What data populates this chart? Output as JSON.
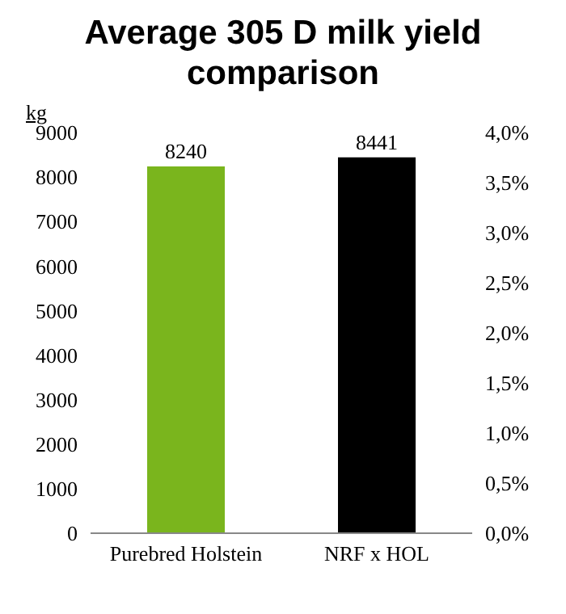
{
  "chart_data": {
    "type": "bar",
    "title": "Average 305 D milk yield comparison",
    "ylabel": "kg",
    "categories": [
      "Purebred Holstein",
      "NRF x HOL"
    ],
    "values": [
      8240,
      8441
    ],
    "colors": [
      "#7ab51d",
      "#000000"
    ],
    "ylim": [
      0,
      9000
    ],
    "yticks": [
      0,
      1000,
      2000,
      3000,
      4000,
      5000,
      6000,
      7000,
      8000,
      9000
    ],
    "y2lim": [
      0,
      4
    ],
    "y2ticks": [
      {
        "value": 0,
        "label": "0,0%"
      },
      {
        "value": 0.5,
        "label": "0,5%"
      },
      {
        "value": 1,
        "label": "1,0%"
      },
      {
        "value": 1.5,
        "label": "1,5%"
      },
      {
        "value": 2,
        "label": "2,0%"
      },
      {
        "value": 2.5,
        "label": "2,5%"
      },
      {
        "value": 3,
        "label": "3,0%"
      },
      {
        "value": 3.5,
        "label": "3,5%"
      },
      {
        "value": 4,
        "label": "4,0%"
      }
    ],
    "data_labels": true,
    "grid": false,
    "legend": false
  }
}
